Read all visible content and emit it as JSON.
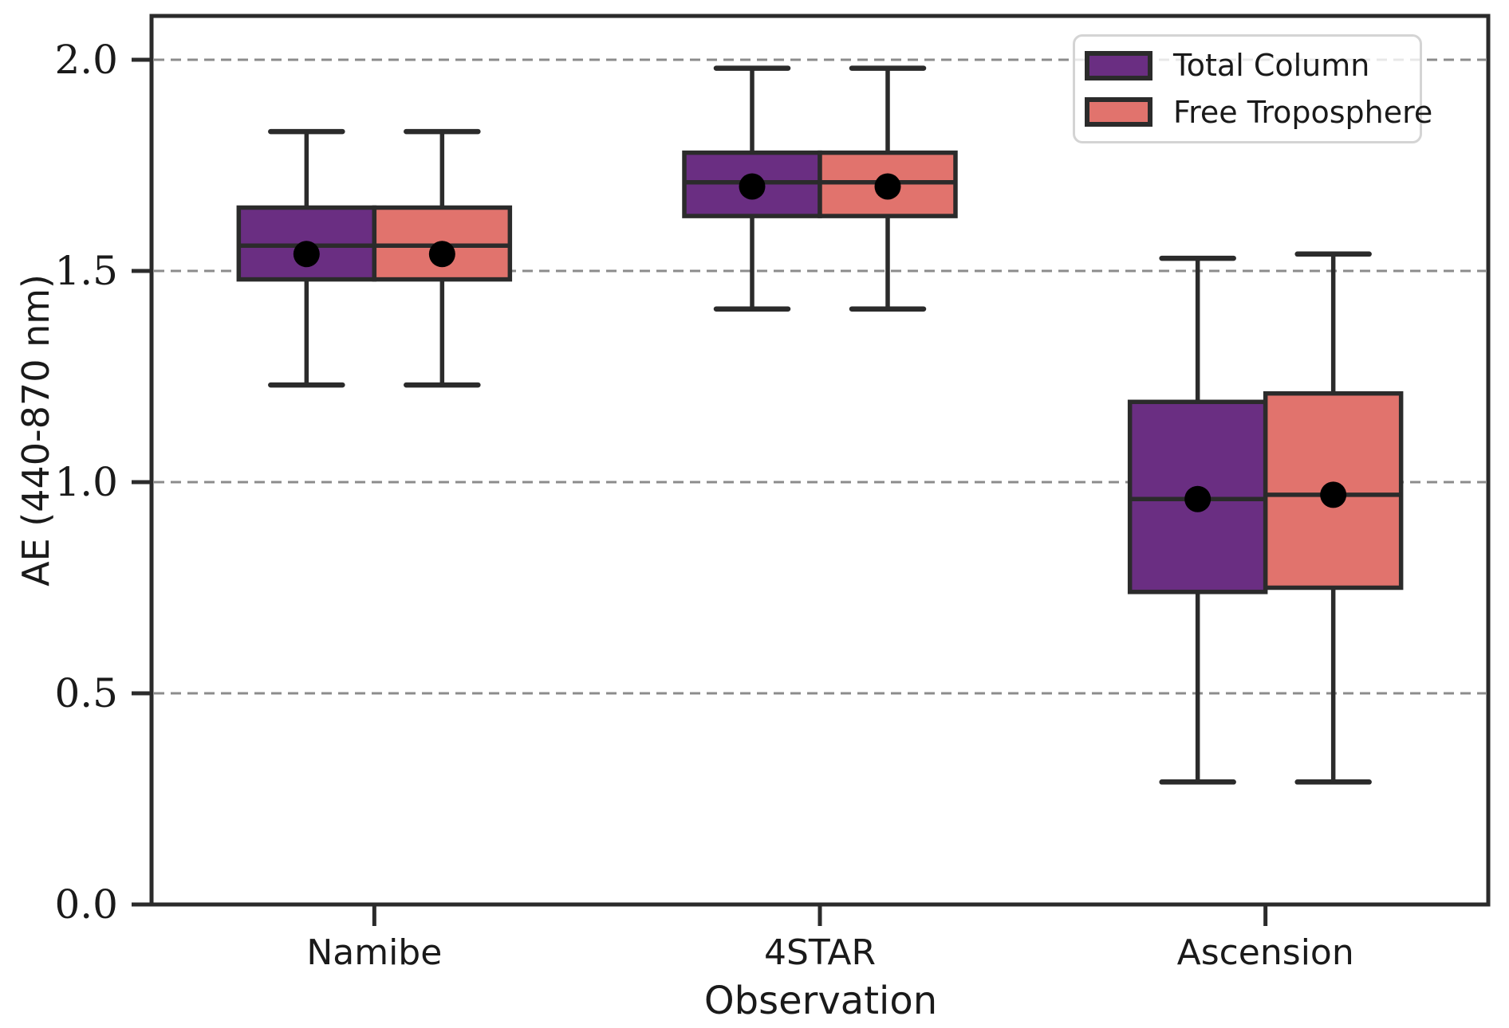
{
  "chart_data": {
    "type": "boxplot",
    "title": "",
    "xlabel": "Observation",
    "ylabel": "AE (440-870 nm)",
    "categories": [
      "Namibe",
      "4STAR",
      "Ascension"
    ],
    "yticks": [
      0.0,
      0.5,
      1.0,
      1.5,
      2.0
    ],
    "ylim": [
      0,
      2.11
    ],
    "grid": "horizontal dashed at yticks above 0",
    "legend_position": "upper right",
    "edge_color": "#2b2b2b",
    "grid_color": "#8c8c8c",
    "mean_marker_color": "#000000",
    "series": [
      {
        "name": "Total Column",
        "color": "#6a2e82",
        "boxes": [
          {
            "category": "Namibe",
            "whisker_low": 1.23,
            "q1": 1.48,
            "median": 1.56,
            "q3": 1.65,
            "whisker_high": 1.83,
            "mean": 1.54
          },
          {
            "category": "4STAR",
            "whisker_low": 1.41,
            "q1": 1.63,
            "median": 1.71,
            "q3": 1.78,
            "whisker_high": 1.98,
            "mean": 1.7
          },
          {
            "category": "Ascension",
            "whisker_low": 0.29,
            "q1": 0.74,
            "median": 0.96,
            "q3": 1.19,
            "whisker_high": 1.53,
            "mean": 0.96
          }
        ]
      },
      {
        "name": "Free Troposphere",
        "color": "#e1736d",
        "boxes": [
          {
            "category": "Namibe",
            "whisker_low": 1.23,
            "q1": 1.48,
            "median": 1.56,
            "q3": 1.65,
            "whisker_high": 1.83,
            "mean": 1.54
          },
          {
            "category": "4STAR",
            "whisker_low": 1.41,
            "q1": 1.63,
            "median": 1.71,
            "q3": 1.78,
            "whisker_high": 1.98,
            "mean": 1.7
          },
          {
            "category": "Ascension",
            "whisker_low": 0.29,
            "q1": 0.75,
            "median": 0.97,
            "q3": 1.21,
            "whisker_high": 1.54,
            "mean": 0.97
          }
        ]
      }
    ]
  }
}
